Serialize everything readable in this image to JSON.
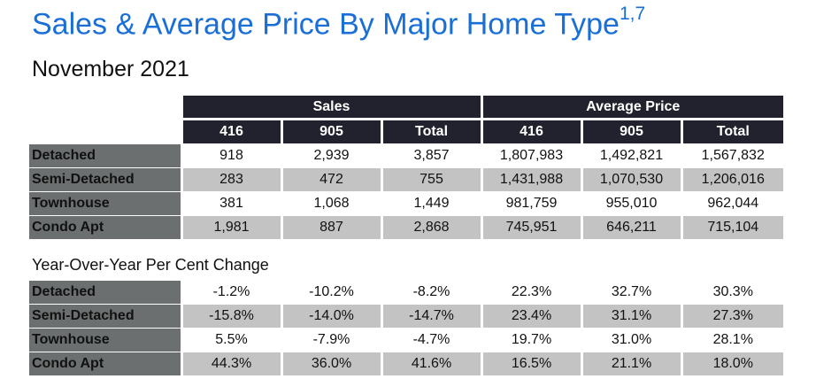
{
  "title": "Sales & Average Price By Major Home Type",
  "title_superscript": "1,7",
  "subtitle": "November 2021",
  "sales_table": {
    "group_headers": [
      "Sales",
      "Average Price"
    ],
    "column_headers": [
      "416",
      "905",
      "Total",
      "416",
      "905",
      "Total"
    ],
    "rows": [
      {
        "label": "Detached",
        "values": [
          "918",
          "2,939",
          "3,857",
          "1,807,983",
          "1,492,821",
          "1,567,832"
        ]
      },
      {
        "label": "Semi-Detached",
        "values": [
          "283",
          "472",
          "755",
          "1,431,988",
          "1,070,530",
          "1,206,016"
        ]
      },
      {
        "label": "Townhouse",
        "values": [
          "381",
          "1,068",
          "1,449",
          "981,759",
          "955,010",
          "962,044"
        ]
      },
      {
        "label": "Condo Apt",
        "values": [
          "1,981",
          "887",
          "2,868",
          "745,951",
          "646,211",
          "715,104"
        ]
      }
    ]
  },
  "yoy_section_title": "Year-Over-Year Per Cent Change",
  "yoy_table": {
    "rows": [
      {
        "label": "Detached",
        "values": [
          "-1.2%",
          "-10.2%",
          "-8.2%",
          "22.3%",
          "32.7%",
          "30.3%"
        ]
      },
      {
        "label": "Semi-Detached",
        "values": [
          "-15.8%",
          "-14.0%",
          "-14.7%",
          "23.4%",
          "31.1%",
          "27.3%"
        ]
      },
      {
        "label": "Townhouse",
        "values": [
          "5.5%",
          "-7.9%",
          "-4.7%",
          "19.7%",
          "31.0%",
          "28.1%"
        ]
      },
      {
        "label": "Condo Apt",
        "values": [
          "44.3%",
          "36.0%",
          "41.6%",
          "16.5%",
          "21.1%",
          "18.0%"
        ]
      }
    ]
  },
  "colors": {
    "title": "#1a6fd6",
    "header_bg": "#22222e",
    "row_label_bg": "#6b6f6f",
    "shaded_row_bg": "#c3c3c3"
  }
}
